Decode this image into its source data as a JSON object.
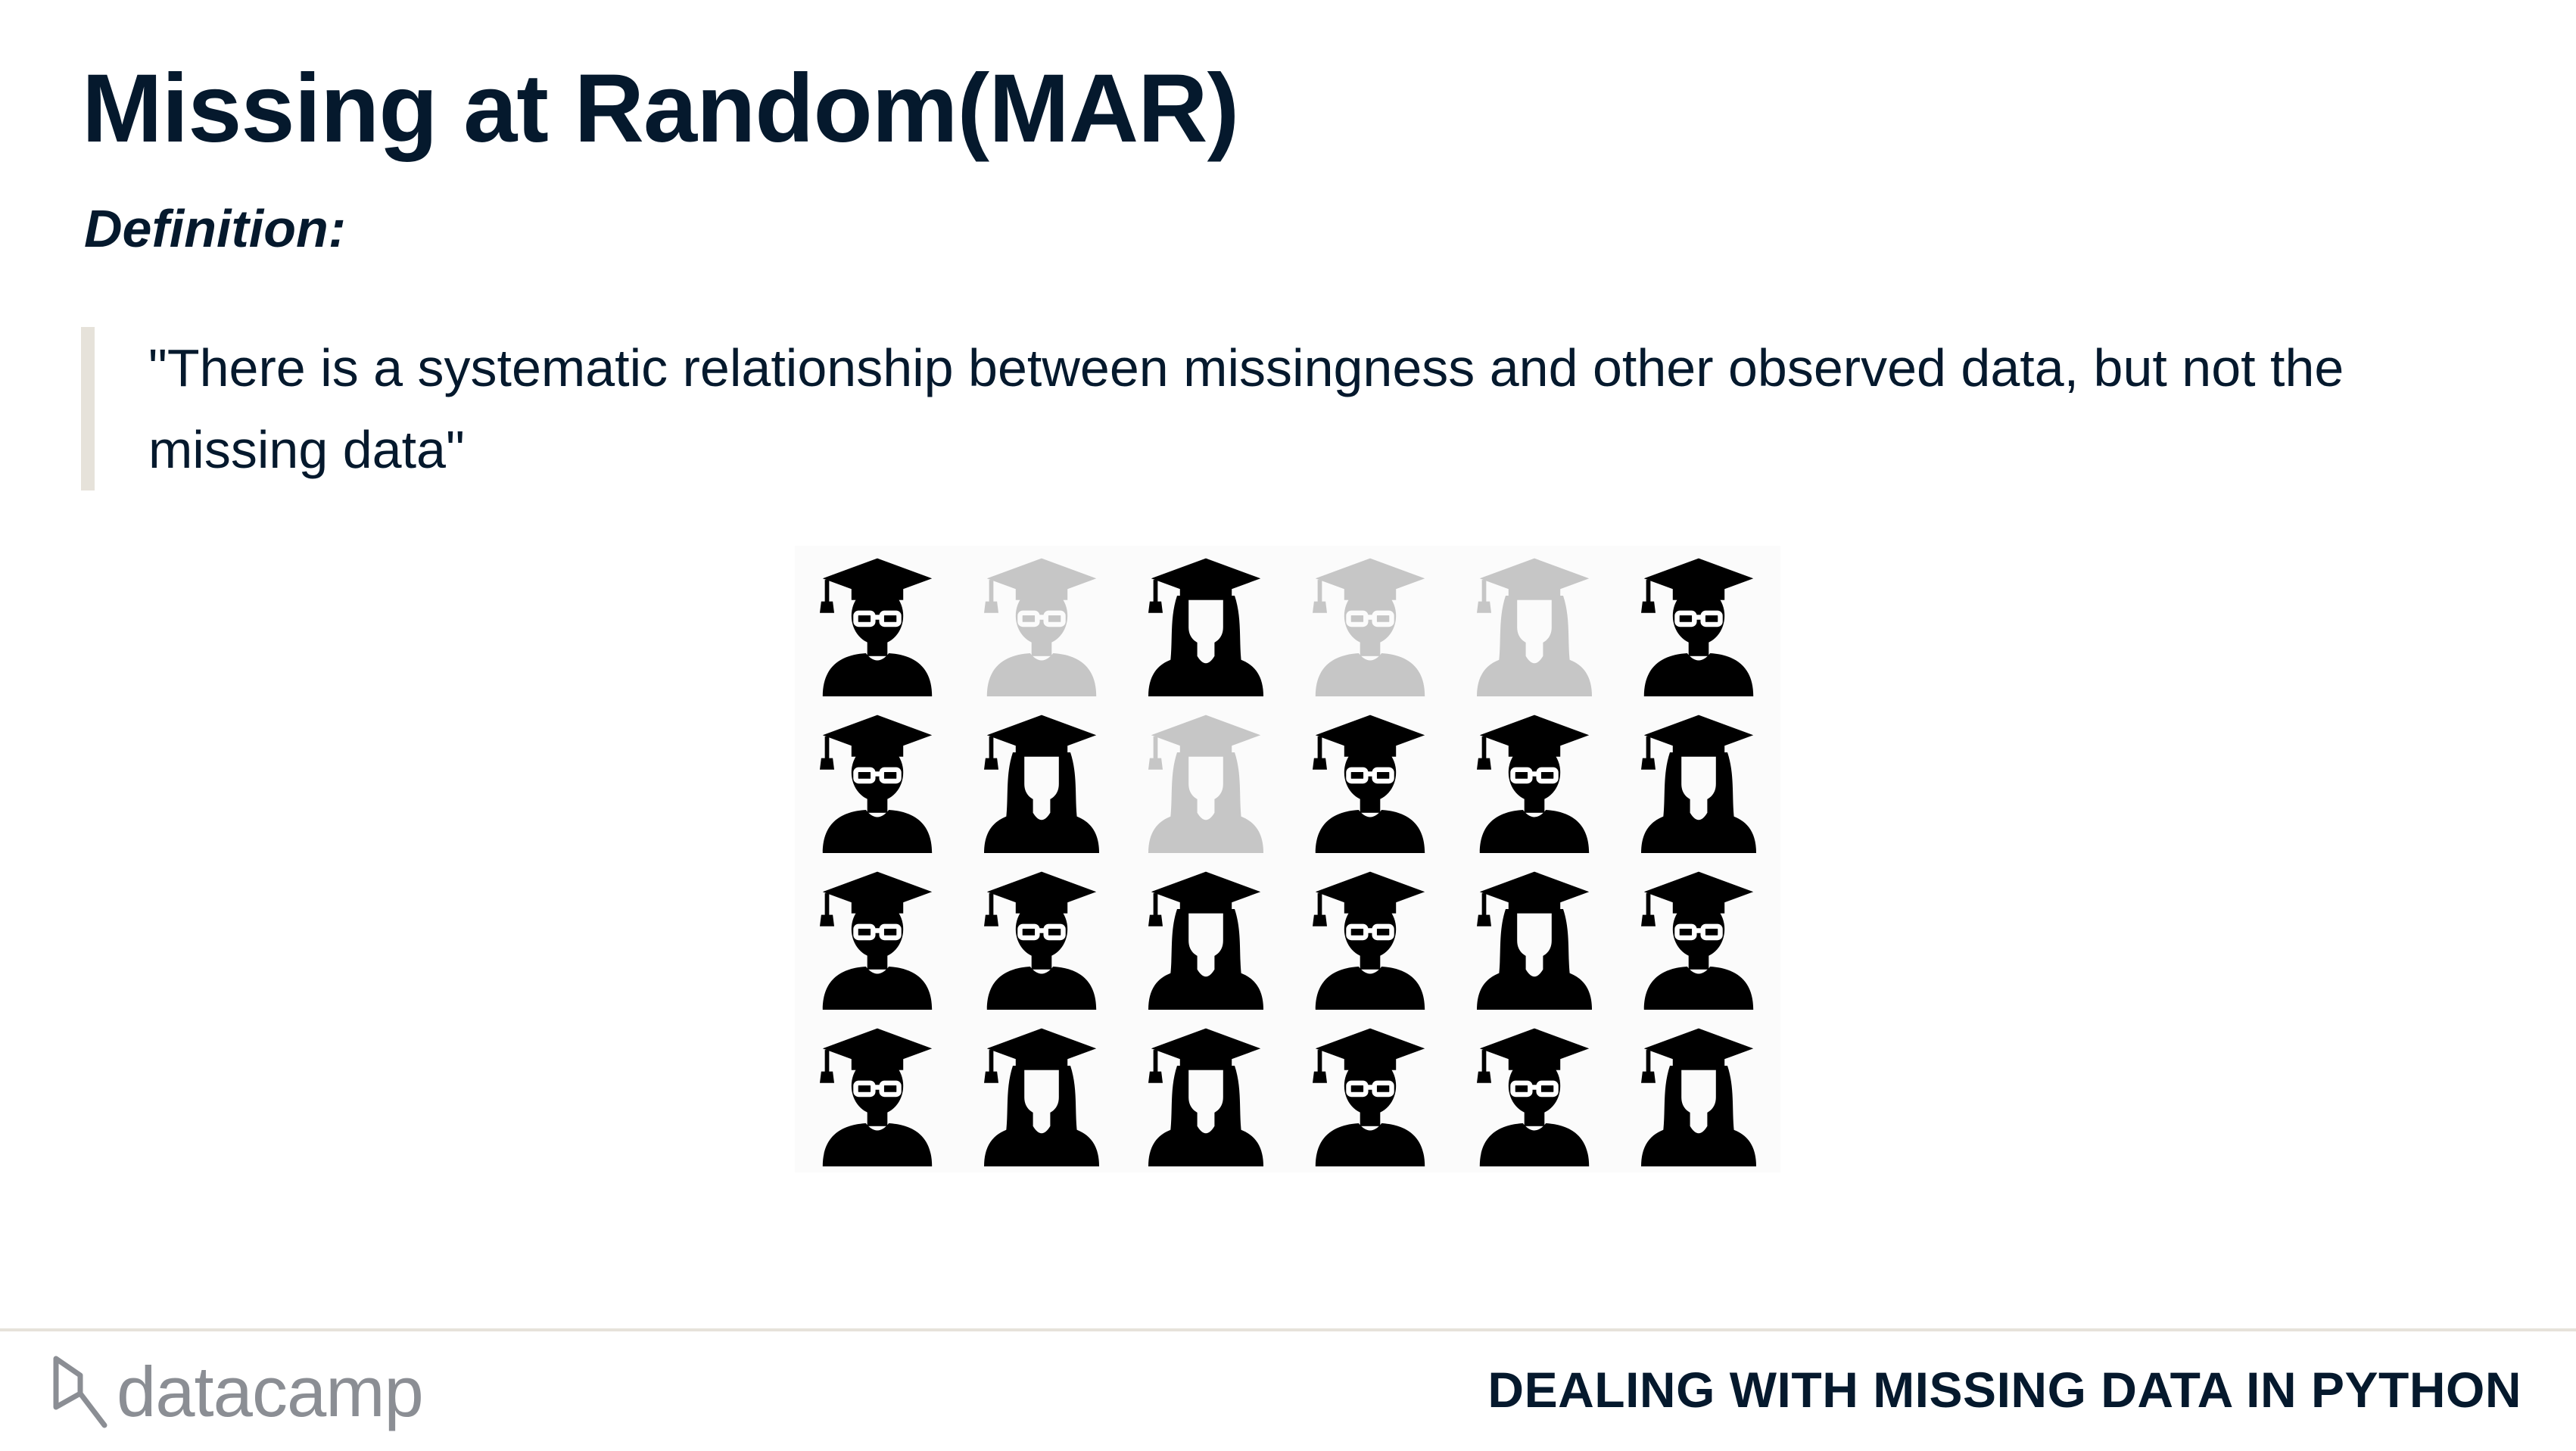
{
  "slide": {
    "title": "Missing at Random(MAR)",
    "subtitle": "Definition:",
    "quote": "\"There is a systematic relationship between missingness and other observed data, but not the missing data\""
  },
  "figure": {
    "icon_name": "graduate-icon",
    "colors": {
      "present": "#000000",
      "missing": "#c6c6c6"
    },
    "grid": [
      [
        {
          "gender": "male",
          "missing": false
        },
        {
          "gender": "male",
          "missing": true
        },
        {
          "gender": "female",
          "missing": false
        },
        {
          "gender": "male",
          "missing": true
        },
        {
          "gender": "female",
          "missing": true
        },
        {
          "gender": "male",
          "missing": false
        }
      ],
      [
        {
          "gender": "male",
          "missing": false
        },
        {
          "gender": "female",
          "missing": false
        },
        {
          "gender": "female",
          "missing": true
        },
        {
          "gender": "male",
          "missing": false
        },
        {
          "gender": "male",
          "missing": false
        },
        {
          "gender": "female",
          "missing": false
        }
      ],
      [
        {
          "gender": "male",
          "missing": false
        },
        {
          "gender": "male",
          "missing": false
        },
        {
          "gender": "female",
          "missing": false
        },
        {
          "gender": "male",
          "missing": false
        },
        {
          "gender": "female",
          "missing": false
        },
        {
          "gender": "male",
          "missing": false
        }
      ],
      [
        {
          "gender": "male",
          "missing": false
        },
        {
          "gender": "female",
          "missing": false
        },
        {
          "gender": "female",
          "missing": false
        },
        {
          "gender": "male",
          "missing": false
        },
        {
          "gender": "male",
          "missing": false
        },
        {
          "gender": "female",
          "missing": false
        }
      ]
    ]
  },
  "footer": {
    "logo_text": "datacamp",
    "course_title": "DEALING WITH MISSING DATA IN PYTHON"
  }
}
